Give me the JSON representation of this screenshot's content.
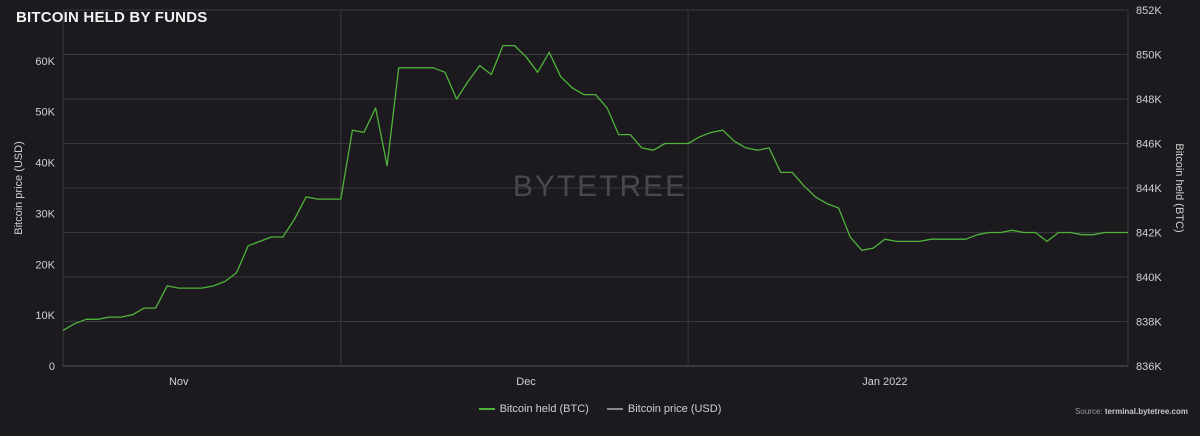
{
  "title": "BITCOIN HELD BY FUNDS",
  "watermark": "BYTETREE",
  "source_prefix": "Source:",
  "source_site": "terminal.bytetree.com",
  "colors": {
    "background": "#1c1a1f",
    "held_line": "#4fb33a",
    "price_line": "#8a8a8a",
    "grid": "#3a383d"
  },
  "legend": [
    {
      "label": "Bitcoin held (BTC)",
      "color": "#4fb33a"
    },
    {
      "label": "Bitcoin price (USD)",
      "color": "#8a8a8a"
    }
  ],
  "chart_data": {
    "type": "line",
    "title": "BITCOIN HELD BY FUNDS",
    "x_ticks": [
      "Nov",
      "Dec",
      "Jan 2022"
    ],
    "y_left": {
      "label": "Bitcoin price (USD)",
      "ticks": [
        "0",
        "10K",
        "20K",
        "30K",
        "40K",
        "50K",
        "60K"
      ],
      "range": [
        0,
        70000
      ]
    },
    "y_right": {
      "label": "Bitcoin held (BTC)",
      "ticks": [
        "836K",
        "838K",
        "840K",
        "842K",
        "844K",
        "846K",
        "848K",
        "850K",
        "852K"
      ],
      "range": [
        836000,
        852000
      ]
    },
    "grid": true,
    "legend_position": "bottom",
    "series": [
      {
        "name": "Bitcoin held (BTC)",
        "axis": "right",
        "x": [
          "2021-10-22",
          "2021-10-23",
          "2021-10-24",
          "2021-10-25",
          "2021-10-26",
          "2021-10-27",
          "2021-10-28",
          "2021-10-29",
          "2021-10-30",
          "2021-10-31",
          "2021-11-01",
          "2021-11-02",
          "2021-11-03",
          "2021-11-04",
          "2021-11-05",
          "2021-11-06",
          "2021-11-07",
          "2021-11-08",
          "2021-11-09",
          "2021-11-10",
          "2021-11-11",
          "2021-11-12",
          "2021-11-13",
          "2021-11-14",
          "2021-11-15",
          "2021-11-16",
          "2021-11-17",
          "2021-11-18",
          "2021-11-19",
          "2021-11-20",
          "2021-11-21",
          "2021-11-22",
          "2021-11-23",
          "2021-11-24",
          "2021-11-25",
          "2021-11-26",
          "2021-11-27",
          "2021-11-28",
          "2021-11-29",
          "2021-11-30",
          "2021-12-01",
          "2021-12-02",
          "2021-12-03",
          "2021-12-04",
          "2021-12-05",
          "2021-12-06",
          "2021-12-07",
          "2021-12-08",
          "2021-12-09",
          "2021-12-10",
          "2021-12-11",
          "2021-12-12",
          "2021-12-13",
          "2021-12-14",
          "2021-12-15",
          "2021-12-16",
          "2021-12-17",
          "2021-12-18",
          "2021-12-19",
          "2021-12-20",
          "2021-12-21",
          "2021-12-22",
          "2021-12-23",
          "2021-12-24",
          "2021-12-25",
          "2021-12-26",
          "2021-12-27",
          "2021-12-28",
          "2021-12-29",
          "2021-12-30",
          "2021-12-31",
          "2022-01-01",
          "2022-01-02",
          "2022-01-03",
          "2022-01-04",
          "2022-01-05",
          "2022-01-06",
          "2022-01-07",
          "2022-01-08",
          "2022-01-09",
          "2022-01-10",
          "2022-01-11",
          "2022-01-12",
          "2022-01-13",
          "2022-01-14",
          "2022-01-15",
          "2022-01-16",
          "2022-01-17",
          "2022-01-18",
          "2022-01-19",
          "2022-01-20",
          "2022-01-21",
          "2022-01-22"
        ],
        "values": [
          837.6,
          837.9,
          838.1,
          838.1,
          838.2,
          838.2,
          838.3,
          838.6,
          838.6,
          839.6,
          839.5,
          839.5,
          839.5,
          839.6,
          839.8,
          840.2,
          841.4,
          841.6,
          841.8,
          841.8,
          842.6,
          843.6,
          843.5,
          843.5,
          843.5,
          846.6,
          846.5,
          847.6,
          845.0,
          849.4,
          849.4,
          849.4,
          849.4,
          849.2,
          848.0,
          848.8,
          849.5,
          849.1,
          850.4,
          850.4,
          849.9,
          849.2,
          850.1,
          849.0,
          848.5,
          848.2,
          848.2,
          847.6,
          846.4,
          846.4,
          845.8,
          845.7,
          846.0,
          846.0,
          846.0,
          846.3,
          846.5,
          846.6,
          846.1,
          845.8,
          845.7,
          845.8,
          844.7,
          844.7,
          844.1,
          843.6,
          843.3,
          843.1,
          841.8,
          841.2,
          841.3,
          841.7,
          841.6,
          841.6,
          841.6,
          841.7,
          841.7,
          841.7,
          841.7,
          841.9,
          842.0,
          842.0,
          842.1,
          842.0,
          842.0,
          841.6,
          842.0,
          842.0,
          841.9,
          841.9,
          842.0,
          842.0,
          842.0
        ]
      },
      {
        "name": "Bitcoin price (USD)",
        "axis": "left",
        "values": []
      }
    ]
  }
}
